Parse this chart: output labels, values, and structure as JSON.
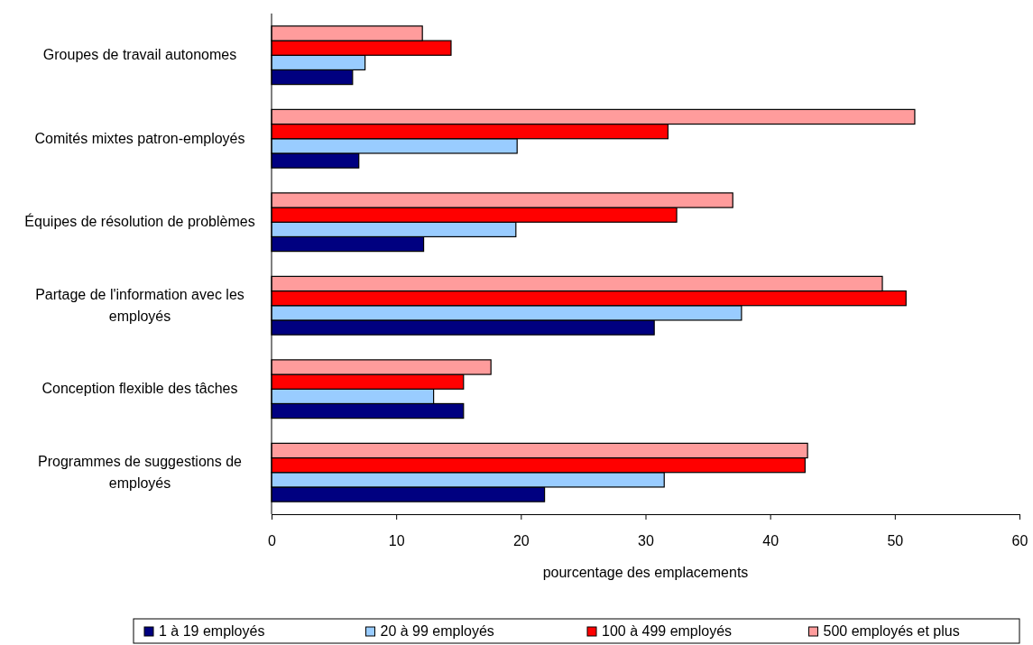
{
  "chart_data": {
    "type": "bar",
    "orientation": "horizontal",
    "xlabel": "pourcentage des emplacements",
    "categories": [
      "Groupes de travail autonomes",
      "Comités mixtes patron-employés",
      "Équipes de résolution de problèmes",
      "Partage de l'information avec les employés",
      "Conception flexible des tâches",
      "Programmes de suggestions de employés"
    ],
    "series": [
      {
        "name": "1 à 19 employés",
        "color": "#000080",
        "values": [
          6.5,
          7.0,
          12.2,
          30.7,
          15.4,
          21.9
        ]
      },
      {
        "name": "20 à 99 employés",
        "color": "#99ccff",
        "values": [
          7.5,
          19.7,
          19.6,
          37.7,
          13.0,
          31.5
        ]
      },
      {
        "name": "100 à 499 employés",
        "color": "#ff0000",
        "values": [
          14.4,
          31.8,
          32.5,
          50.9,
          15.4,
          42.8
        ]
      },
      {
        "name": "500 employés et plus",
        "color": "#ff9c9c",
        "values": [
          12.1,
          51.6,
          37.0,
          49.0,
          17.6,
          43.0
        ]
      }
    ],
    "xlim": [
      0,
      60
    ],
    "xticks": [
      0,
      10,
      20,
      30,
      40,
      50,
      60
    ],
    "grid": false,
    "legend": "bottom"
  }
}
